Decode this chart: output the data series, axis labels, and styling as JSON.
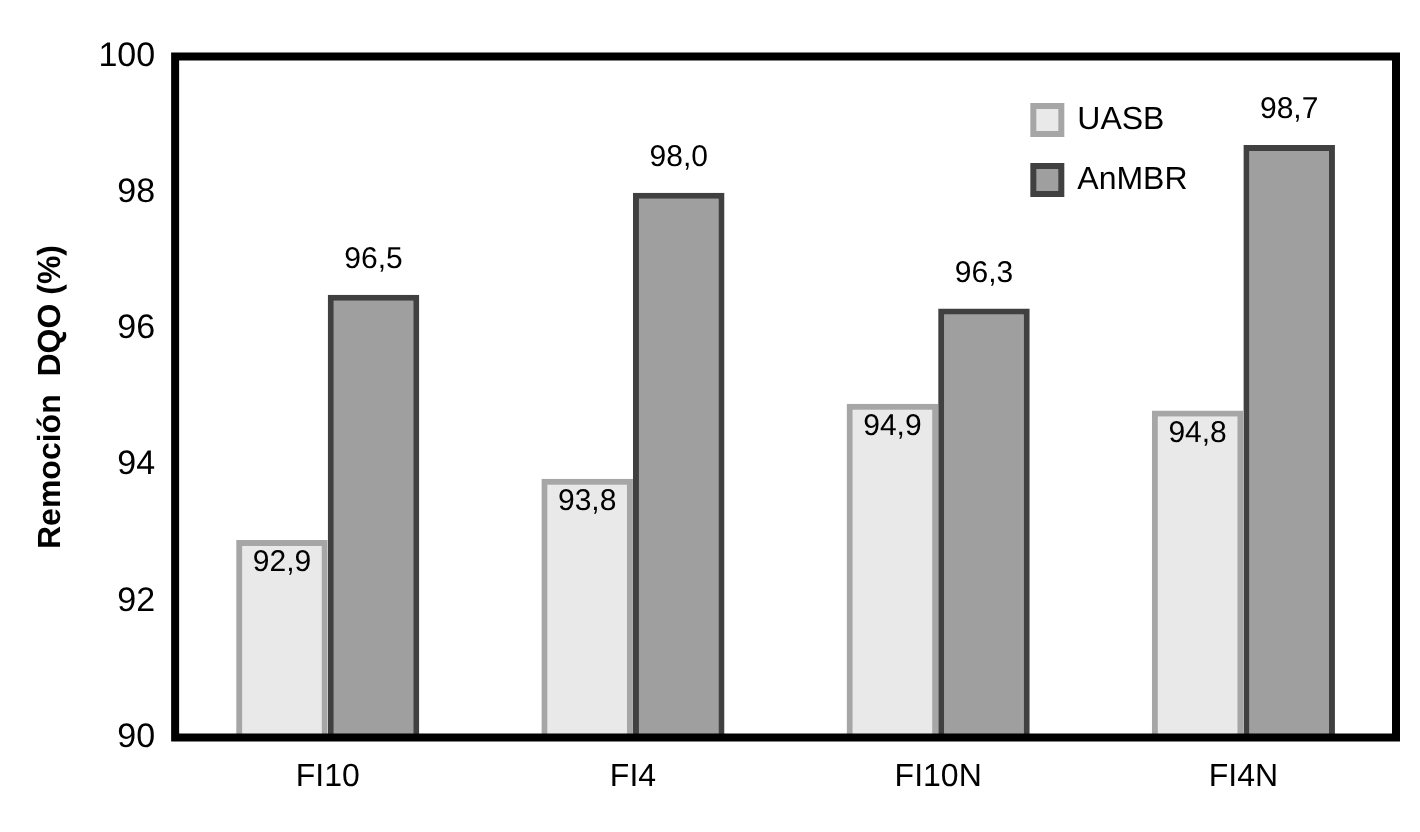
{
  "chart_data": {
    "type": "bar",
    "ylabel": "Remoción  DQO (%)",
    "categories": [
      "FI10",
      "FI4",
      "FI10N",
      "FI4N"
    ],
    "series": [
      {
        "name": "UASB",
        "color": "#a6a6a6",
        "values": [
          92.9,
          93.8,
          94.9,
          94.8
        ],
        "value_labels": [
          "92,9",
          "93,8",
          "94,9",
          "94,8"
        ]
      },
      {
        "name": "AnMBR",
        "color": "#404040",
        "values": [
          96.5,
          98.0,
          96.3,
          98.7
        ],
        "value_labels": [
          "96,5",
          "98,0",
          "96,3",
          "98,7"
        ]
      }
    ],
    "ylim": [
      90,
      100
    ],
    "yticks": [
      90,
      92,
      94,
      96,
      98,
      100
    ],
    "grid": false,
    "legend": "top right"
  }
}
